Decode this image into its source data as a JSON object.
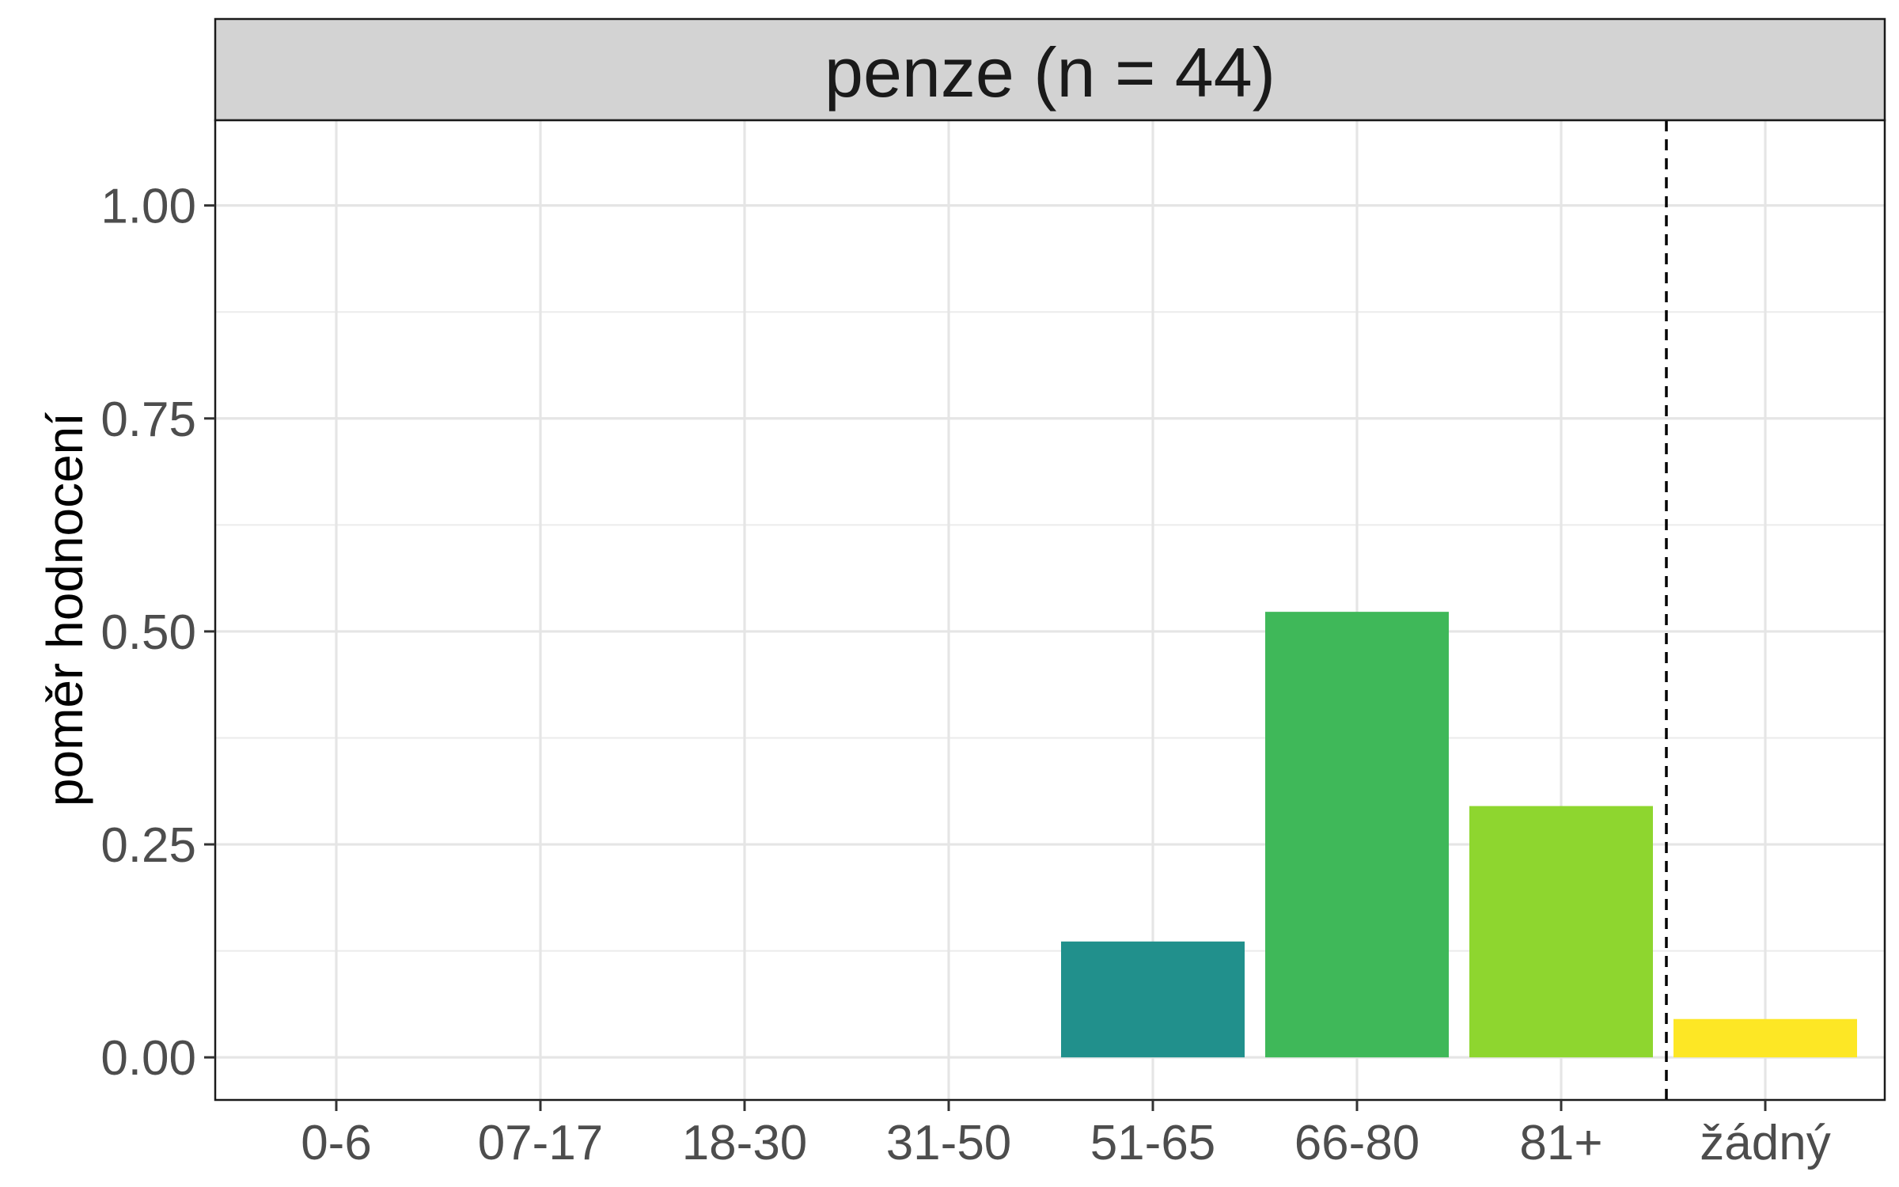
{
  "chart_data": {
    "type": "bar",
    "title": "",
    "facet_label": "penze (n = 44)",
    "xlabel": "",
    "ylabel": "poměr hodnocení",
    "categories": [
      "0-6",
      "07-17",
      "18-30",
      "31-50",
      "51-65",
      "66-80",
      "81+",
      "žádný"
    ],
    "values": [
      0,
      0,
      0,
      0,
      0.136,
      0.523,
      0.295,
      0.045
    ],
    "colors": [
      "#440154",
      "#46337E",
      "#365C8D",
      "#277F8E",
      "#21908C",
      "#3FB859",
      "#8ED62F",
      "#FDE725"
    ],
    "ylim": [
      -0.05,
      1.1
    ],
    "yticks": [
      0,
      0.25,
      0.5,
      0.75,
      1.0
    ],
    "ytick_labels": [
      "0.00",
      "0.25",
      "0.50",
      "0.75",
      "1.00"
    ],
    "grid": true,
    "reference_line": {
      "type": "vertical-dashed",
      "between_categories": [
        "81+",
        "žádný"
      ]
    }
  }
}
